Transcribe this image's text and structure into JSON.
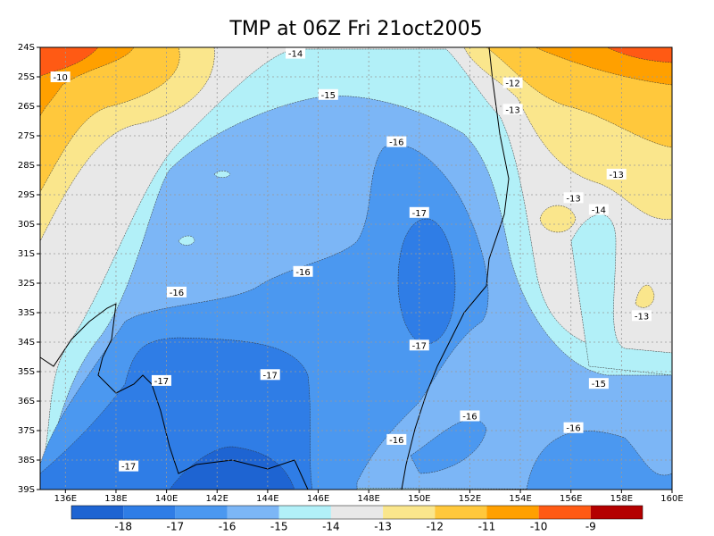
{
  "map_data": {
    "title": "TMP at 06Z Fri 21oct2005",
    "xlim": [
      135,
      160
    ],
    "ylim": [
      -24,
      -39
    ],
    "xticks": [
      {
        "value": 136,
        "label": "136E"
      },
      {
        "value": 138,
        "label": "138E"
      },
      {
        "value": 140,
        "label": "140E"
      },
      {
        "value": 142,
        "label": "142E"
      },
      {
        "value": 144,
        "label": "144E"
      },
      {
        "value": 146,
        "label": "146E"
      },
      {
        "value": 148,
        "label": "148E"
      },
      {
        "value": 150,
        "label": "150E"
      },
      {
        "value": 152,
        "label": "152E"
      },
      {
        "value": 154,
        "label": "154E"
      },
      {
        "value": 156,
        "label": "156E"
      },
      {
        "value": 158,
        "label": "158E"
      },
      {
        "value": 160,
        "label": "160E"
      }
    ],
    "yticks": [
      {
        "value": -24,
        "label": "24S"
      },
      {
        "value": -25,
        "label": "25S"
      },
      {
        "value": -26,
        "label": "26S"
      },
      {
        "value": -27,
        "label": "27S"
      },
      {
        "value": -28,
        "label": "28S"
      },
      {
        "value": -29,
        "label": "29S"
      },
      {
        "value": -30,
        "label": "30S"
      },
      {
        "value": -31,
        "label": "31S"
      },
      {
        "value": -32,
        "label": "32S"
      },
      {
        "value": -33,
        "label": "33S"
      },
      {
        "value": -34,
        "label": "34S"
      },
      {
        "value": -35,
        "label": "35S"
      },
      {
        "value": -36,
        "label": "36S"
      },
      {
        "value": -37,
        "label": "37S"
      },
      {
        "value": -38,
        "label": "38S"
      },
      {
        "value": -39,
        "label": "39S"
      }
    ],
    "grid": true,
    "colorbar": {
      "levels": [
        -18,
        -17,
        -16,
        -15,
        -14,
        -13,
        -12,
        -11,
        -10,
        -9
      ],
      "colors": [
        "#1e64d2",
        "#2f7de6",
        "#4b98f0",
        "#7cb6f6",
        "#b2f0f8",
        "#e8e8e8",
        "#fae68c",
        "#ffc83c",
        "#ffa000",
        "#ff5a14",
        "#b40000"
      ]
    },
    "contour_labels": [
      {
        "value": -10,
        "lon": 135.8,
        "lat": -25.0
      },
      {
        "value": -14,
        "lon": 145.1,
        "lat": -24.2
      },
      {
        "value": -15,
        "lon": 146.4,
        "lat": -25.6
      },
      {
        "value": -16,
        "lon": 149.1,
        "lat": -27.2
      },
      {
        "value": -17,
        "lon": 150.0,
        "lat": -29.6
      },
      {
        "value": -16,
        "lon": 145.4,
        "lat": -31.6
      },
      {
        "value": -16,
        "lon": 140.4,
        "lat": -32.3
      },
      {
        "value": -17,
        "lon": 150.0,
        "lat": -34.1
      },
      {
        "value": -17,
        "lon": 139.8,
        "lat": -35.3
      },
      {
        "value": -17,
        "lon": 144.1,
        "lat": -35.1
      },
      {
        "value": -16,
        "lon": 152.0,
        "lat": -36.5
      },
      {
        "value": -16,
        "lon": 149.1,
        "lat": -37.3
      },
      {
        "value": -17,
        "lon": 138.5,
        "lat": -38.2
      },
      {
        "value": -16,
        "lon": 156.1,
        "lat": -36.9
      },
      {
        "value": -15,
        "lon": 157.1,
        "lat": -35.4
      },
      {
        "value": -13,
        "lon": 156.1,
        "lat": -29.1
      },
      {
        "value": -14,
        "lon": 157.1,
        "lat": -29.5
      },
      {
        "value": -13,
        "lon": 157.8,
        "lat": -28.3
      },
      {
        "value": -13,
        "lon": 158.8,
        "lat": -33.1
      },
      {
        "value": -12,
        "lon": 153.7,
        "lat": -25.2
      },
      {
        "value": -13,
        "lon": 153.7,
        "lat": -26.1
      }
    ]
  }
}
